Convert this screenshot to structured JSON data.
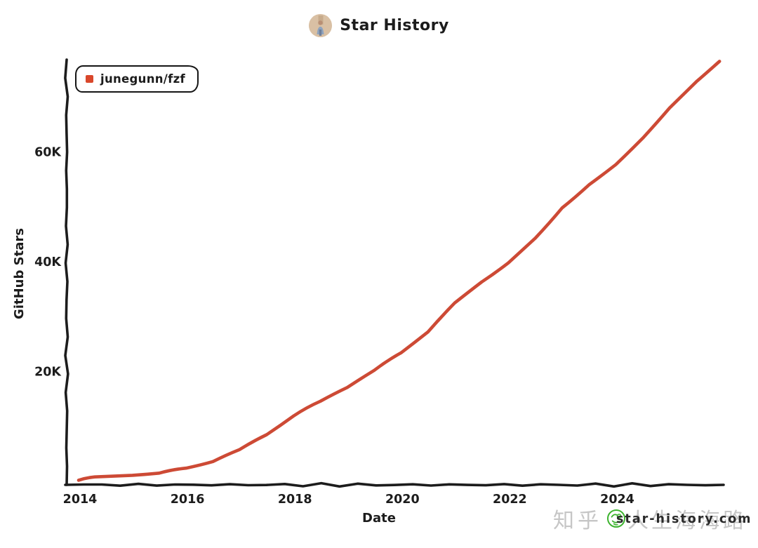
{
  "header": {
    "title": "Star History",
    "avatar_icon": "repo-owner-avatar"
  },
  "legend": {
    "position": "top-left",
    "items": [
      {
        "label": "junegunn/fzf",
        "marker_color": "#d9472b"
      }
    ]
  },
  "watermark": {
    "zhihu_prefix": "知乎",
    "zhihu_user": "人生海海路",
    "site": "star-history.com",
    "gray_color": "#c6c6c6",
    "site_color": "#2a2a2a",
    "avatar_icon_color": "#3db32f"
  },
  "chart_data": {
    "type": "line",
    "title": "Star History",
    "xlabel": "Date",
    "ylabel": "GitHub Stars",
    "xlim": [
      2013.78,
      2026.05
    ],
    "ylim": [
      0,
      79000
    ],
    "grid": false,
    "legend_position": "top-left",
    "axis_color": "#1c1c1c",
    "xticks": {
      "values": [
        2014,
        2016,
        2018,
        2020,
        2022,
        2024
      ],
      "labels": [
        "2014",
        "2016",
        "2018",
        "2020",
        "2022",
        "2024"
      ]
    },
    "yticks": {
      "values": [
        20000,
        40000,
        60000
      ],
      "labels": [
        "20K",
        "40K",
        "60K"
      ]
    },
    "series": [
      {
        "name": "junegunn/fzf",
        "color": "#cd4a35",
        "x": [
          2014.0,
          2014.3,
          2015.0,
          2015.5,
          2016.0,
          2016.5,
          2017.0,
          2017.5,
          2018.0,
          2018.5,
          2019.0,
          2019.5,
          2020.0,
          2020.5,
          2021.0,
          2021.5,
          2022.0,
          2022.5,
          2023.0,
          2023.5,
          2024.0,
          2024.5,
          2025.0,
          2025.5,
          2025.93
        ],
        "y": [
          200,
          800,
          1100,
          1500,
          2400,
          3600,
          5800,
          8500,
          11900,
          14600,
          17100,
          20200,
          23400,
          27200,
          32500,
          36300,
          39800,
          44300,
          49800,
          54000,
          57700,
          62500,
          68000,
          72800,
          76500
        ]
      }
    ]
  }
}
